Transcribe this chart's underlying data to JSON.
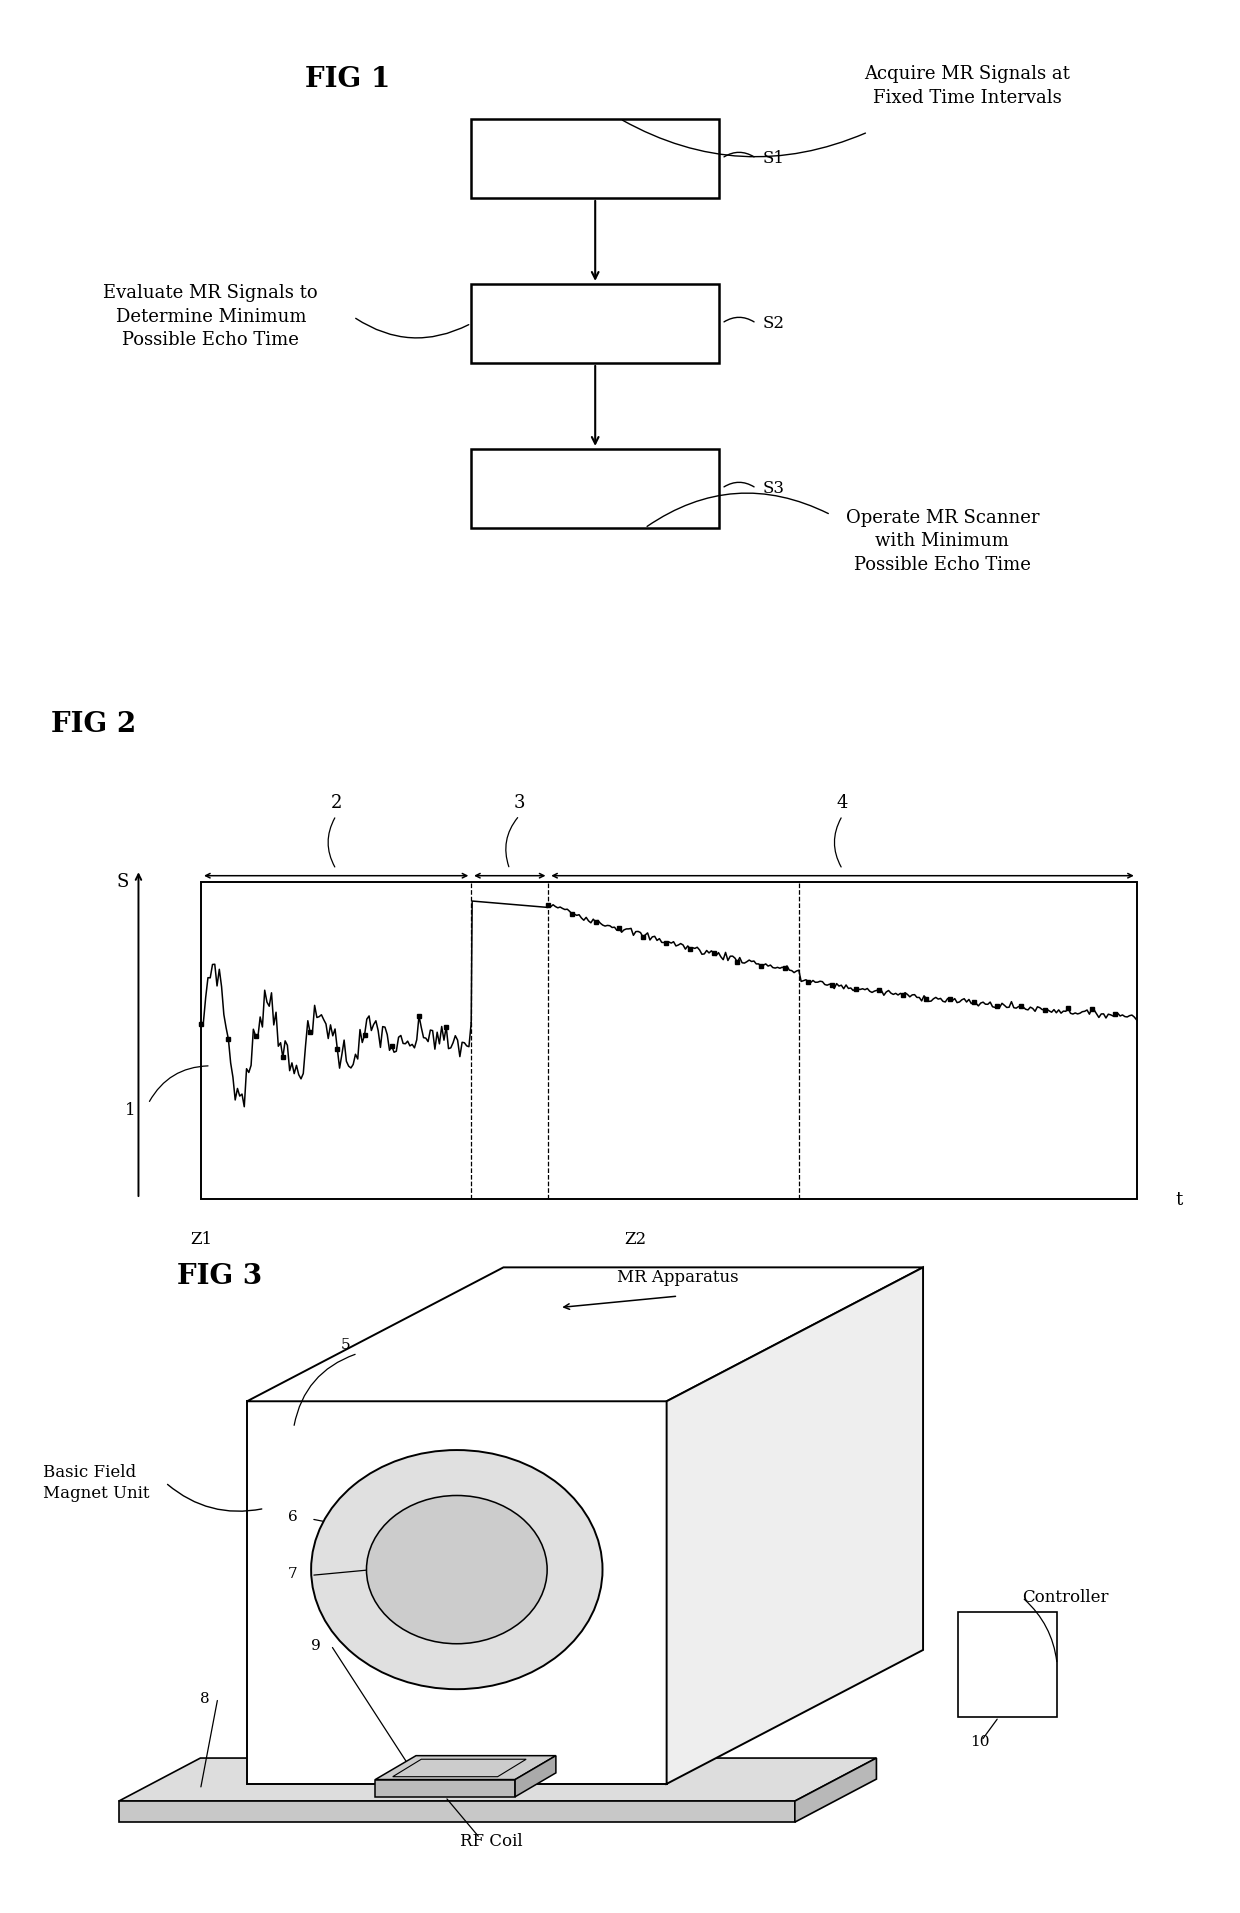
{
  "bg_color": "#ffffff",
  "fig1_title": "FIG 1",
  "fig2_title": "FIG 2",
  "fig3_title": "FIG 3",
  "lw": 1.5,
  "fontsize_title": 20,
  "fontsize_label": 13,
  "fontsize_small": 12
}
